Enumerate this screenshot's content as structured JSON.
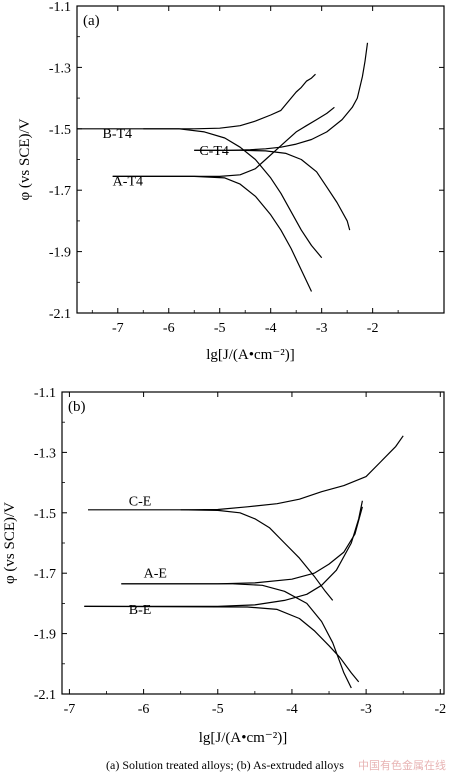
{
  "caption": "(a) Solution treated alloys; (b) As-extruded alloys",
  "watermark": "中国有色金属在线",
  "chart_data": [
    {
      "type": "line",
      "panel_label": "(a)",
      "xlabel": "lg[J/(A•cm⁻²)]",
      "ylabel": "φ (vs SCE)/V",
      "xlim": [
        -7.8,
        -0.6
      ],
      "ylim": [
        -2.1,
        -1.1
      ],
      "xticks": [
        -7,
        -6,
        -5,
        -4,
        -3,
        -2
      ],
      "yticks": [
        -2.1,
        -1.9,
        -1.7,
        -1.5,
        -1.3,
        -1.1
      ],
      "tick_labels_x": [
        "-7",
        "-6",
        "-5",
        "-4",
        "-3",
        "-2"
      ],
      "tick_labels_y": [
        "-2.1",
        "-1.9",
        "-1.7",
        "-1.5",
        "-1.3",
        "-1.1"
      ],
      "series": [
        {
          "name": "B-T4",
          "label_at": [
            -7.3,
            -1.53
          ],
          "anodic": [
            [
              -7.8,
              -1.5
            ],
            [
              -6.5,
              -1.5
            ],
            [
              -5.5,
              -1.5
            ],
            [
              -5.0,
              -1.498
            ],
            [
              -4.6,
              -1.49
            ],
            [
              -4.3,
              -1.475
            ],
            [
              -4.0,
              -1.455
            ],
            [
              -3.8,
              -1.44
            ],
            [
              -3.7,
              -1.42
            ],
            [
              -3.6,
              -1.4
            ],
            [
              -3.5,
              -1.38
            ],
            [
              -3.4,
              -1.365
            ],
            [
              -3.3,
              -1.345
            ],
            [
              -3.2,
              -1.335
            ],
            [
              -3.12,
              -1.322
            ]
          ],
          "cathodic": [
            [
              -6.5,
              -1.5
            ],
            [
              -5.8,
              -1.5
            ],
            [
              -5.3,
              -1.51
            ],
            [
              -4.9,
              -1.53
            ],
            [
              -4.6,
              -1.56
            ],
            [
              -4.3,
              -1.6
            ],
            [
              -4.0,
              -1.66
            ],
            [
              -3.8,
              -1.71
            ],
            [
              -3.6,
              -1.77
            ],
            [
              -3.4,
              -1.83
            ],
            [
              -3.2,
              -1.88
            ],
            [
              -3.0,
              -1.92
            ]
          ]
        },
        {
          "name": "C-T4",
          "label_at": [
            -5.4,
            -1.585
          ],
          "anodic": [
            [
              -5.5,
              -1.57
            ],
            [
              -4.8,
              -1.57
            ],
            [
              -4.4,
              -1.568
            ],
            [
              -4.1,
              -1.565
            ],
            [
              -3.8,
              -1.56
            ],
            [
              -3.5,
              -1.55
            ],
            [
              -3.2,
              -1.535
            ],
            [
              -2.9,
              -1.51
            ],
            [
              -2.6,
              -1.47
            ],
            [
              -2.4,
              -1.43
            ],
            [
              -2.3,
              -1.4
            ],
            [
              -2.2,
              -1.33
            ],
            [
              -2.15,
              -1.28
            ],
            [
              -2.1,
              -1.22
            ]
          ],
          "cathodic": [
            [
              -5.5,
              -1.57
            ],
            [
              -4.6,
              -1.57
            ],
            [
              -4.1,
              -1.572
            ],
            [
              -3.7,
              -1.58
            ],
            [
              -3.4,
              -1.6
            ],
            [
              -3.1,
              -1.64
            ],
            [
              -2.9,
              -1.69
            ],
            [
              -2.7,
              -1.74
            ],
            [
              -2.5,
              -1.8
            ],
            [
              -2.45,
              -1.83
            ]
          ]
        },
        {
          "name": "A-T4",
          "label_at": [
            -7.1,
            -1.685
          ],
          "anodic": [
            [
              -7.1,
              -1.655
            ],
            [
              -6.0,
              -1.655
            ],
            [
              -5.0,
              -1.655
            ],
            [
              -4.6,
              -1.65
            ],
            [
              -4.3,
              -1.63
            ],
            [
              -4.1,
              -1.6
            ],
            [
              -3.9,
              -1.57
            ],
            [
              -3.7,
              -1.54
            ],
            [
              -3.5,
              -1.51
            ],
            [
              -3.3,
              -1.49
            ],
            [
              -3.1,
              -1.47
            ],
            [
              -2.9,
              -1.45
            ],
            [
              -2.75,
              -1.43
            ]
          ],
          "cathodic": [
            [
              -7.1,
              -1.655
            ],
            [
              -5.5,
              -1.655
            ],
            [
              -4.9,
              -1.66
            ],
            [
              -4.6,
              -1.68
            ],
            [
              -4.3,
              -1.72
            ],
            [
              -4.0,
              -1.78
            ],
            [
              -3.8,
              -1.83
            ],
            [
              -3.6,
              -1.89
            ],
            [
              -3.4,
              -1.96
            ],
            [
              -3.2,
              -2.03
            ]
          ]
        }
      ]
    },
    {
      "type": "line",
      "panel_label": "(b)",
      "xlabel": "lg[J/(A•cm⁻²)]",
      "ylabel": "φ (vs SCE)/V",
      "xlim": [
        -7.1,
        -1.95
      ],
      "ylim": [
        -2.1,
        -1.1
      ],
      "xticks": [
        -7,
        -6,
        -5,
        -4,
        -3,
        -2
      ],
      "yticks": [
        -2.1,
        -1.9,
        -1.7,
        -1.5,
        -1.3,
        -1.1
      ],
      "tick_labels_x": [
        "-7",
        "-6",
        "-5",
        "-4",
        "-3",
        "-2"
      ],
      "tick_labels_y": [
        "-2.1",
        "-1.9",
        "-1.7",
        "-1.5",
        "-1.3",
        "-1.1"
      ],
      "series": [
        {
          "name": "C-E",
          "label_at": [
            -6.2,
            -1.475
          ],
          "anodic": [
            [
              -6.75,
              -1.49
            ],
            [
              -5.5,
              -1.49
            ],
            [
              -5.0,
              -1.489
            ],
            [
              -4.6,
              -1.48
            ],
            [
              -4.2,
              -1.47
            ],
            [
              -3.9,
              -1.455
            ],
            [
              -3.6,
              -1.43
            ],
            [
              -3.3,
              -1.41
            ],
            [
              -3.0,
              -1.38
            ],
            [
              -2.8,
              -1.33
            ],
            [
              -2.6,
              -1.28
            ],
            [
              -2.5,
              -1.245
            ]
          ],
          "cathodic": [
            [
              -5.5,
              -1.49
            ],
            [
              -5.0,
              -1.492
            ],
            [
              -4.7,
              -1.5
            ],
            [
              -4.5,
              -1.52
            ],
            [
              -4.3,
              -1.55
            ],
            [
              -4.1,
              -1.6
            ],
            [
              -3.9,
              -1.65
            ],
            [
              -3.7,
              -1.71
            ],
            [
              -3.55,
              -1.76
            ],
            [
              -3.45,
              -1.79
            ]
          ]
        },
        {
          "name": "A-E",
          "label_at": [
            -6.0,
            -1.715
          ],
          "anodic": [
            [
              -6.3,
              -1.735
            ],
            [
              -5.0,
              -1.735
            ],
            [
              -4.5,
              -1.732
            ],
            [
              -4.0,
              -1.72
            ],
            [
              -3.7,
              -1.7
            ],
            [
              -3.5,
              -1.67
            ],
            [
              -3.3,
              -1.63
            ],
            [
              -3.15,
              -1.57
            ],
            [
              -3.05,
              -1.48
            ]
          ],
          "cathodic": [
            [
              -6.3,
              -1.735
            ],
            [
              -4.8,
              -1.735
            ],
            [
              -4.4,
              -1.74
            ],
            [
              -4.1,
              -1.76
            ],
            [
              -3.8,
              -1.8
            ],
            [
              -3.6,
              -1.86
            ],
            [
              -3.45,
              -1.93
            ],
            [
              -3.3,
              -2.03
            ],
            [
              -3.2,
              -2.08
            ]
          ]
        },
        {
          "name": "B-E",
          "label_at": [
            -6.2,
            -1.835
          ],
          "anodic": [
            [
              -6.8,
              -1.81
            ],
            [
              -5.0,
              -1.81
            ],
            [
              -4.5,
              -1.805
            ],
            [
              -4.1,
              -1.79
            ],
            [
              -3.8,
              -1.77
            ],
            [
              -3.6,
              -1.74
            ],
            [
              -3.4,
              -1.69
            ],
            [
              -3.2,
              -1.6
            ],
            [
              -3.1,
              -1.52
            ],
            [
              -3.05,
              -1.46
            ]
          ],
          "cathodic": [
            [
              -6.8,
              -1.81
            ],
            [
              -4.6,
              -1.812
            ],
            [
              -4.2,
              -1.82
            ],
            [
              -3.9,
              -1.85
            ],
            [
              -3.7,
              -1.89
            ],
            [
              -3.5,
              -1.94
            ],
            [
              -3.35,
              -1.98
            ],
            [
              -3.2,
              -2.03
            ],
            [
              -3.1,
              -2.06
            ]
          ]
        }
      ]
    }
  ]
}
